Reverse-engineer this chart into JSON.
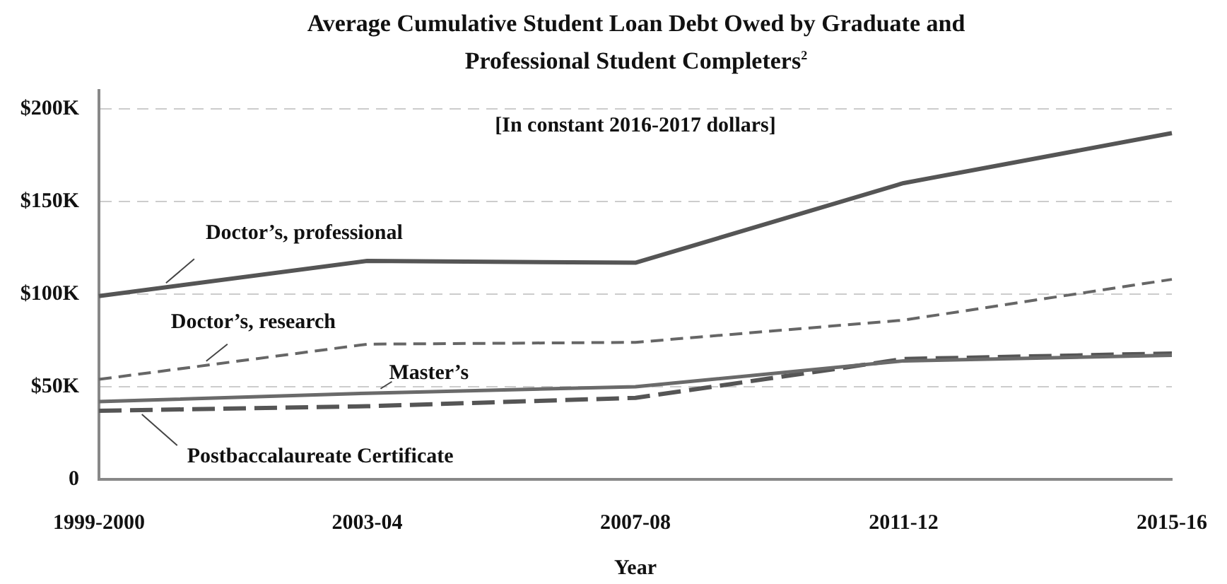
{
  "chart_data": {
    "type": "line",
    "title": "Average Cumulative Student Loan Debt Owed by Graduate and Professional Student Completers$^{2}$",
    "xlabel": "Year",
    "annotations": [
      "[In constant 2016-2017 dollars]"
    ],
    "categories": [
      "1999-2000",
      "2003-04",
      "2007-08",
      "2011-12",
      "2015-16"
    ],
    "series": [
      {
        "name": "Doctor’s, professional",
        "color": "#555555",
        "line_style": "solid",
        "values": [
          99,
          118,
          117,
          160,
          187
        ]
      },
      {
        "name": "Doctor’s, research",
        "color": "#666666",
        "line_style": "dashed",
        "values": [
          54,
          73,
          74,
          86,
          108
        ]
      },
      {
        "name": "Master’s",
        "color": "#6a6a6a",
        "line_style": "solid",
        "values": [
          42,
          46.5,
          50,
          64,
          67
        ]
      },
      {
        "name": "Postbaccalaureate Certificate",
        "color": "#555555",
        "line_style": "dashed",
        "values": [
          37,
          39.5,
          44,
          65,
          68
        ]
      }
    ],
    "ylim": [
      0,
      210
    ],
    "yticks": [
      0,
      {
        "value": 50,
        "label": "$50K"
      },
      {
        "value": 100,
        "label": "$100K"
      },
      {
        "value": 150,
        "label": "$150K"
      },
      {
        "value": 200,
        "label": "$200K"
      }
    ],
    "grid": "y",
    "legend": false,
    "marker": "none"
  }
}
